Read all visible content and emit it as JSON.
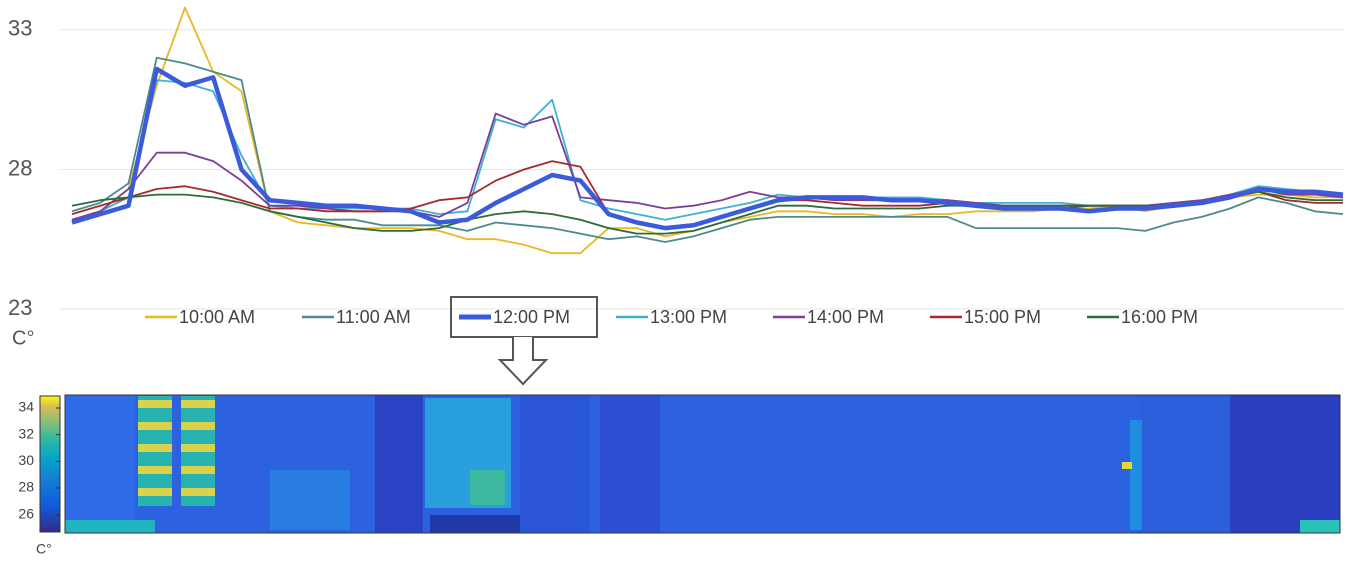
{
  "chart_data": [
    {
      "type": "line",
      "y_label": "C°",
      "ylim": [
        23,
        34
      ],
      "yticks": [
        23,
        28,
        33
      ],
      "grid": true,
      "series": [
        {
          "name": "10:00 AM",
          "color": "#e8b923",
          "values": [
            26.1,
            26.5,
            27.3,
            31.0,
            33.8,
            31.5,
            30.8,
            26.5,
            26.1,
            26.0,
            25.9,
            25.9,
            25.9,
            25.8,
            25.5,
            25.5,
            25.3,
            25.0,
            25.0,
            25.9,
            25.9,
            25.6,
            25.8,
            26.1,
            26.3,
            26.5,
            26.5,
            26.4,
            26.4,
            26.3,
            26.4,
            26.4,
            26.5,
            26.5,
            26.5,
            26.6,
            26.6,
            26.7,
            26.5,
            26.7,
            26.8,
            27.0,
            27.1,
            27.1,
            27.0,
            27.0
          ]
        },
        {
          "name": "11:00 AM",
          "color": "#4f8a8b",
          "values": [
            26.5,
            26.8,
            27.5,
            32.0,
            31.8,
            31.5,
            31.2,
            26.5,
            26.3,
            26.2,
            26.2,
            26.0,
            26.0,
            26.0,
            25.8,
            26.1,
            26.0,
            25.9,
            25.7,
            25.5,
            25.6,
            25.4,
            25.6,
            25.9,
            26.2,
            26.3,
            26.3,
            26.3,
            26.3,
            26.3,
            26.3,
            26.3,
            25.9,
            25.9,
            25.9,
            25.9,
            25.9,
            25.9,
            25.8,
            26.1,
            26.3,
            26.6,
            27.0,
            26.8,
            26.5,
            26.4
          ]
        },
        {
          "name": "12:00 PM",
          "color": "#3b5bdb",
          "values": [
            26.1,
            26.4,
            26.7,
            31.6,
            31.0,
            31.3,
            28.0,
            26.9,
            26.8,
            26.7,
            26.7,
            26.6,
            26.5,
            26.1,
            26.2,
            26.8,
            27.3,
            27.8,
            27.6,
            26.4,
            26.1,
            25.9,
            26.0,
            26.3,
            26.6,
            26.9,
            27.0,
            27.0,
            27.0,
            26.9,
            26.9,
            26.8,
            26.7,
            26.6,
            26.6,
            26.6,
            26.5,
            26.6,
            26.6,
            26.7,
            26.8,
            27.0,
            27.3,
            27.2,
            27.2,
            27.1
          ]
        },
        {
          "name": "13:00 PM",
          "color": "#3fb1d6",
          "values": [
            26.2,
            26.5,
            27.0,
            31.2,
            31.1,
            30.8,
            28.5,
            26.7,
            26.6,
            26.6,
            26.6,
            26.6,
            26.6,
            26.4,
            26.5,
            29.8,
            29.5,
            30.5,
            26.9,
            26.6,
            26.4,
            26.2,
            26.4,
            26.6,
            26.8,
            27.1,
            27.0,
            27.0,
            27.0,
            27.0,
            27.0,
            26.9,
            26.8,
            26.8,
            26.8,
            26.8,
            26.7,
            26.7,
            26.7,
            26.8,
            26.9,
            27.1,
            27.4,
            27.3,
            27.2,
            27.1
          ]
        },
        {
          "name": "14:00 PM",
          "color": "#7b3f98",
          "values": [
            26.2,
            26.5,
            27.3,
            28.6,
            28.6,
            28.3,
            27.6,
            26.7,
            26.7,
            26.6,
            26.5,
            26.5,
            26.5,
            26.3,
            26.8,
            30.0,
            29.6,
            29.9,
            27.0,
            26.9,
            26.8,
            26.6,
            26.7,
            26.9,
            27.2,
            27.0,
            27.0,
            26.9,
            26.9,
            26.9,
            26.9,
            26.9,
            26.8,
            26.7,
            26.7,
            26.7,
            26.7,
            26.7,
            26.7,
            26.8,
            26.9,
            27.1,
            27.3,
            27.1,
            27.1,
            27.0
          ]
        },
        {
          "name": "15:00 PM",
          "color": "#a52a2a",
          "values": [
            26.4,
            26.7,
            27.0,
            27.3,
            27.4,
            27.2,
            26.9,
            26.6,
            26.6,
            26.5,
            26.5,
            26.5,
            26.6,
            26.9,
            27.0,
            27.6,
            28.0,
            28.3,
            28.1,
            26.4,
            26.1,
            25.9,
            26.0,
            26.3,
            26.6,
            26.9,
            26.9,
            26.8,
            26.7,
            26.7,
            26.7,
            26.8,
            26.7,
            26.6,
            26.6,
            26.6,
            26.7,
            26.7,
            26.7,
            26.7,
            26.8,
            27.0,
            27.2,
            26.9,
            26.8,
            26.8
          ]
        },
        {
          "name": "16:00 PM",
          "color": "#2e6b3a",
          "values": [
            26.7,
            26.9,
            27.0,
            27.1,
            27.1,
            27.0,
            26.8,
            26.5,
            26.3,
            26.1,
            25.9,
            25.8,
            25.8,
            25.9,
            26.2,
            26.4,
            26.5,
            26.4,
            26.2,
            25.9,
            25.7,
            25.7,
            25.8,
            26.1,
            26.4,
            26.7,
            26.7,
            26.6,
            26.6,
            26.6,
            26.6,
            26.7,
            26.7,
            26.7,
            26.7,
            26.7,
            26.7,
            26.7,
            26.7,
            26.7,
            26.8,
            27.0,
            27.2,
            27.0,
            26.9,
            26.9
          ]
        }
      ]
    },
    {
      "type": "heatmap",
      "colorbar_label": "C°",
      "colorbar_lim": [
        24.7,
        34.9
      ],
      "colorbar_ticks": [
        26,
        28,
        30,
        32,
        34
      ]
    }
  ]
}
